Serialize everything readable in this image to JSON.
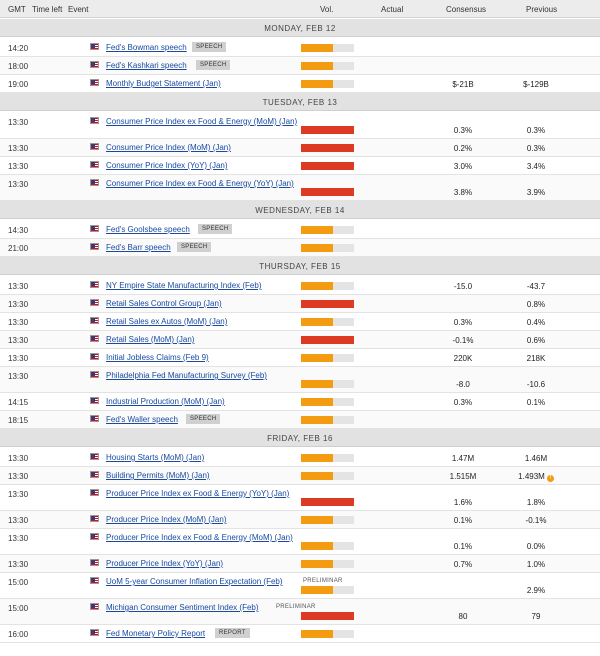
{
  "columns": {
    "gmt": "GMT",
    "time_left": "Time left",
    "event": "Event",
    "vol": "Vol.",
    "actual": "Actual",
    "consensus": "Consensus",
    "previous": "Previous"
  },
  "days": [
    {
      "label": "MONDAY, FEB 12",
      "events": [
        {
          "time": "14:20",
          "name": "Fed's Bowman speech",
          "badge": "SPEECH",
          "badge_style": "box",
          "volatility": "medium",
          "consensus": "",
          "previous": "",
          "tall": false
        },
        {
          "time": "18:00",
          "name": "Fed's Kashkari speech",
          "badge": "SPEECH",
          "badge_style": "box",
          "volatility": "medium",
          "consensus": "",
          "previous": "",
          "tall": false
        },
        {
          "time": "19:00",
          "name": "Monthly Budget Statement (Jan)",
          "badge": "",
          "volatility": "medium",
          "consensus": "$-21B",
          "previous": "$-129B",
          "tall": false
        }
      ]
    },
    {
      "label": "TUESDAY, FEB 13",
      "events": [
        {
          "time": "13:30",
          "name": "Consumer Price Index ex Food & Energy (MoM) (Jan)",
          "badge": "",
          "volatility": "high",
          "consensus": "0.3%",
          "previous": "0.3%",
          "tall": true
        },
        {
          "time": "13:30",
          "name": "Consumer Price Index (MoM) (Jan)",
          "badge": "",
          "volatility": "high",
          "consensus": "0.2%",
          "previous": "0.3%",
          "tall": false
        },
        {
          "time": "13:30",
          "name": "Consumer Price Index (YoY) (Jan)",
          "badge": "",
          "volatility": "high",
          "consensus": "3.0%",
          "previous": "3.4%",
          "tall": false
        },
        {
          "time": "13:30",
          "name": "Consumer Price Index ex Food & Energy (YoY) (Jan)",
          "badge": "",
          "volatility": "high",
          "consensus": "3.8%",
          "previous": "3.9%",
          "tall": true
        }
      ]
    },
    {
      "label": "WEDNESDAY, FEB 14",
      "events": [
        {
          "time": "14:30",
          "name": "Fed's Goolsbee speech",
          "badge": "SPEECH",
          "badge_style": "box",
          "volatility": "medium",
          "consensus": "",
          "previous": "",
          "tall": false
        },
        {
          "time": "21:00",
          "name": "Fed's Barr speech",
          "badge": "SPEECH",
          "badge_style": "box",
          "volatility": "medium",
          "consensus": "",
          "previous": "",
          "tall": false
        }
      ]
    },
    {
      "label": "THURSDAY, FEB 15",
      "events": [
        {
          "time": "13:30",
          "name": "NY Empire State Manufacturing Index (Feb)",
          "badge": "",
          "volatility": "medium",
          "consensus": "-15.0",
          "previous": "-43.7",
          "tall": false
        },
        {
          "time": "13:30",
          "name": "Retail Sales Control Group (Jan)",
          "badge": "",
          "volatility": "high",
          "consensus": "",
          "previous": "0.8%",
          "tall": false
        },
        {
          "time": "13:30",
          "name": "Retail Sales ex Autos (MoM) (Jan)",
          "badge": "",
          "volatility": "medium",
          "consensus": "0.3%",
          "previous": "0.4%",
          "tall": false
        },
        {
          "time": "13:30",
          "name": "Retail Sales (MoM) (Jan)",
          "badge": "",
          "volatility": "high",
          "consensus": "-0.1%",
          "previous": "0.6%",
          "tall": false
        },
        {
          "time": "13:30",
          "name": "Initial Jobless Claims (Feb 9)",
          "badge": "",
          "volatility": "medium",
          "consensus": "220K",
          "previous": "218K",
          "tall": false
        },
        {
          "time": "13:30",
          "name": "Philadelphia Fed Manufacturing Survey (Feb)",
          "badge": "",
          "volatility": "medium",
          "consensus": "-8.0",
          "previous": "-10.6",
          "tall": true
        },
        {
          "time": "14:15",
          "name": "Industrial Production (MoM) (Jan)",
          "badge": "",
          "volatility": "medium",
          "consensus": "0.3%",
          "previous": "0.1%",
          "tall": false
        },
        {
          "time": "18:15",
          "name": "Fed's Waller speech",
          "badge": "SPEECH",
          "badge_style": "box",
          "volatility": "medium",
          "consensus": "",
          "previous": "",
          "tall": false
        }
      ]
    },
    {
      "label": "FRIDAY, FEB 16",
      "events": [
        {
          "time": "13:30",
          "name": "Housing Starts (MoM) (Jan)",
          "badge": "",
          "volatility": "medium",
          "consensus": "1.47M",
          "previous": "1.46M",
          "tall": false
        },
        {
          "time": "13:30",
          "name": "Building Permits (MoM) (Jan)",
          "badge": "",
          "volatility": "medium",
          "consensus": "1.515M",
          "previous": "1.493M",
          "revised": true,
          "tall": false
        },
        {
          "time": "13:30",
          "name": "Producer Price Index ex Food & Energy (YoY) (Jan)",
          "badge": "",
          "volatility": "high",
          "consensus": "1.6%",
          "previous": "1.8%",
          "tall": true
        },
        {
          "time": "13:30",
          "name": "Producer Price Index (MoM) (Jan)",
          "badge": "",
          "volatility": "medium",
          "consensus": "0.1%",
          "previous": "-0.1%",
          "tall": false
        },
        {
          "time": "13:30",
          "name": "Producer Price Index ex Food & Energy (MoM) (Jan)",
          "badge": "",
          "volatility": "medium",
          "consensus": "0.1%",
          "previous": "0.0%",
          "tall": true
        },
        {
          "time": "13:30",
          "name": "Producer Price Index (YoY) (Jan)",
          "badge": "",
          "volatility": "medium",
          "consensus": "0.7%",
          "previous": "1.0%",
          "tall": false
        },
        {
          "time": "15:00",
          "name": "UoM 5-year Consumer Inflation Expectation (Feb)",
          "badge": "PRELIMINAR",
          "badge_style": "plain",
          "volatility": "medium",
          "consensus": "",
          "previous": "2.9%",
          "tall": true
        },
        {
          "time": "15:00",
          "name": "Michigan Consumer Sentiment Index (Feb)",
          "badge": "PRELIMINAR",
          "badge_style": "plain",
          "volatility": "high",
          "consensus": "80",
          "previous": "79",
          "tall": true
        },
        {
          "time": "16:00",
          "name": "Fed Monetary Policy Report",
          "badge": "REPORT",
          "badge_style": "box",
          "volatility": "medium",
          "consensus": "",
          "previous": "",
          "tall": false
        }
      ]
    }
  ],
  "revised_icon": "!",
  "colors": {
    "volatility_medium": "#f39c12",
    "volatility_high": "#dd3a24",
    "volatility_empty": "#e4e4e4",
    "link": "#1a4aa0",
    "day_header_bg": "#e2e2e2"
  },
  "icons": {
    "flag": "us-flag-icon",
    "revised": "revised-info-icon"
  }
}
